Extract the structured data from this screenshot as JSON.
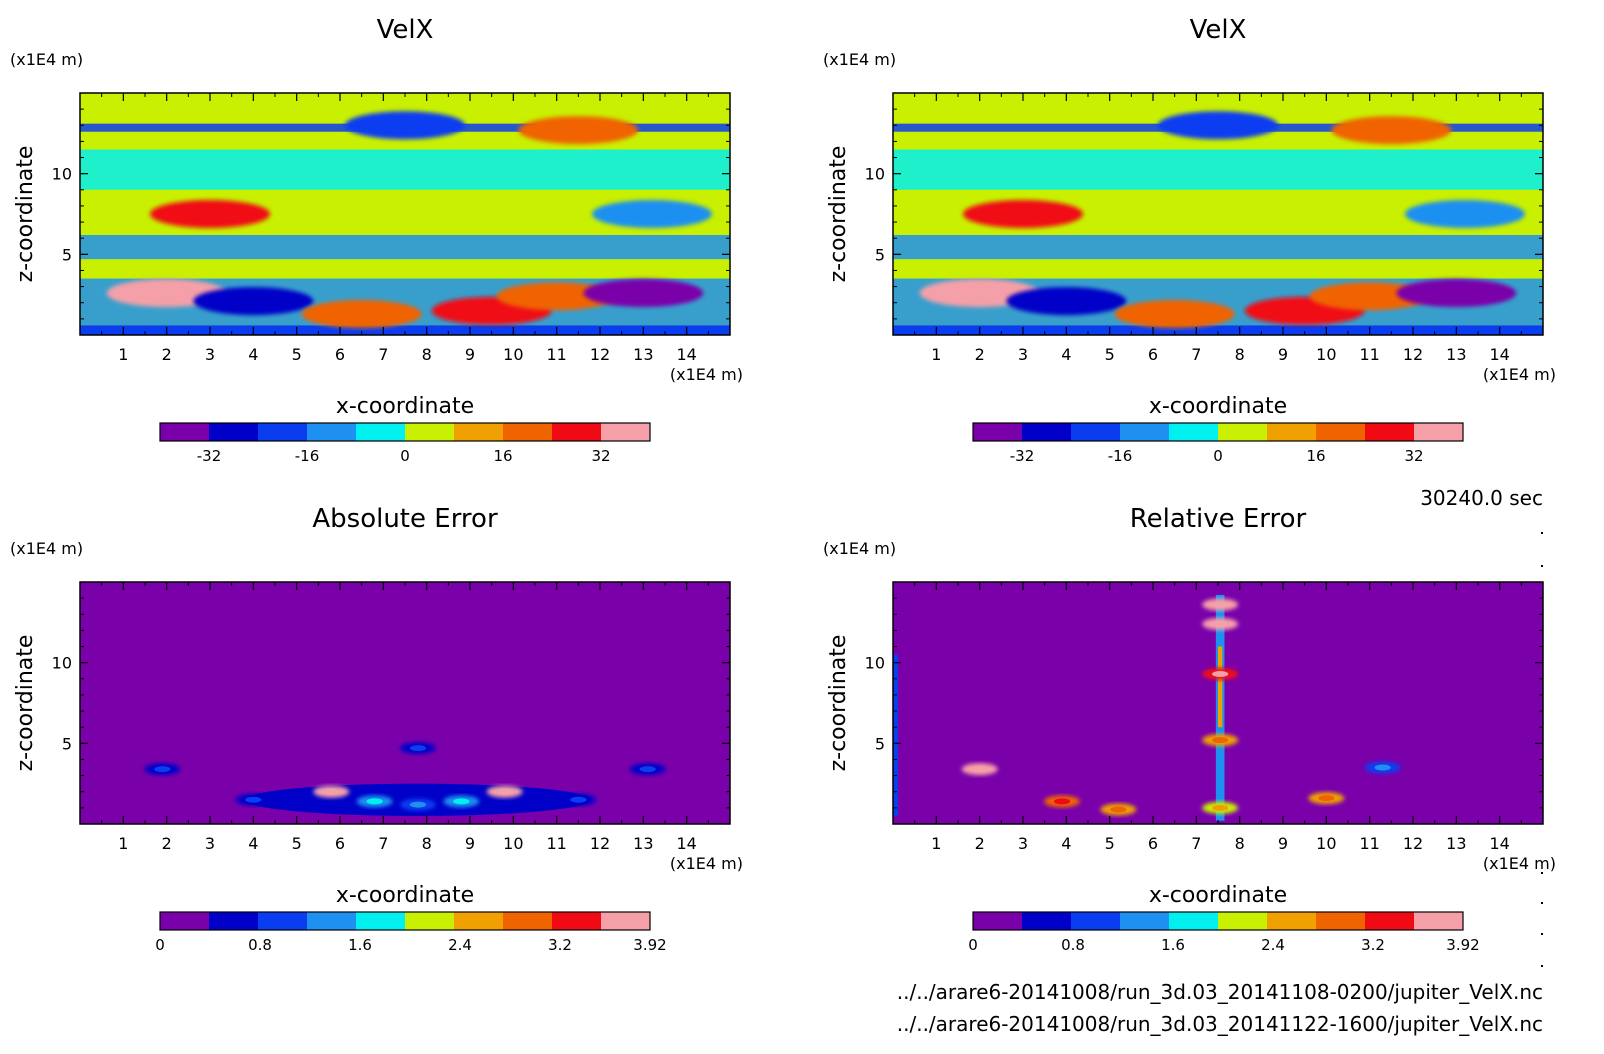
{
  "time_label": "30240.0 sec",
  "files": [
    "../../arare6-20141008/run_3d.03_20141108-0200/jupiter_VelX.nc",
    "../../arare6-20141008/run_3d.03_20141122-1600/jupiter_VelX.nc"
  ],
  "chart_data": [
    {
      "type": "heatmap",
      "title": "VelX",
      "xlabel": "x-coordinate",
      "ylabel": "z-coordinate",
      "x_unit": "(x1E4 m)",
      "y_unit": "(x1E4 m)",
      "xlim": [
        0,
        15
      ],
      "ylim": [
        0,
        15
      ],
      "x_ticks": [
        1,
        2,
        3,
        4,
        5,
        6,
        7,
        8,
        9,
        10,
        11,
        12,
        13,
        14
      ],
      "y_ticks": [
        5,
        10
      ],
      "colorbar": {
        "levels": [
          -40,
          -32,
          -24,
          -16,
          -8,
          0,
          8,
          16,
          24,
          32,
          40
        ],
        "tick_values": [
          -32,
          -16,
          0,
          16,
          32
        ],
        "tick_labels": [
          "-32",
          "-16",
          "0",
          "16",
          "32"
        ],
        "colors": [
          "#7a00aa",
          "#0000c8",
          "#0a3cf0",
          "#1e90f0",
          "#00f0f0",
          "#c8f000",
          "#f0a000",
          "#f06400",
          "#f00a14",
          "#f5a0a8"
        ]
      },
      "features": [
        {
          "x": 2,
          "z": 2.6,
          "value": 32
        },
        {
          "x": 4,
          "z": 2.1,
          "value": -28
        },
        {
          "x": 6.5,
          "z": 1.3,
          "value": 20
        },
        {
          "x": 9.5,
          "z": 1.5,
          "value": 24
        },
        {
          "x": 11,
          "z": 2.4,
          "value": 20
        },
        {
          "x": 13,
          "z": 2.6,
          "value": -36
        },
        {
          "x": 3,
          "z": 7.5,
          "value": 24
        },
        {
          "x": 13.2,
          "z": 7.5,
          "value": -16
        },
        {
          "x": 7.5,
          "z": 13,
          "value": -20
        },
        {
          "x": 11.5,
          "z": 12.7,
          "value": 20
        }
      ]
    },
    {
      "type": "heatmap",
      "title": "VelX",
      "xlabel": "x-coordinate",
      "ylabel": "z-coordinate",
      "x_unit": "(x1E4 m)",
      "y_unit": "(x1E4 m)",
      "xlim": [
        0,
        15
      ],
      "ylim": [
        0,
        15
      ],
      "x_ticks": [
        1,
        2,
        3,
        4,
        5,
        6,
        7,
        8,
        9,
        10,
        11,
        12,
        13,
        14
      ],
      "y_ticks": [
        5,
        10
      ],
      "colorbar": {
        "levels": [
          -40,
          -32,
          -24,
          -16,
          -8,
          0,
          8,
          16,
          24,
          32,
          40
        ],
        "tick_values": [
          -32,
          -16,
          0,
          16,
          32
        ],
        "tick_labels": [
          "-32",
          "-16",
          "0",
          "16",
          "32"
        ],
        "colors": [
          "#7a00aa",
          "#0000c8",
          "#0a3cf0",
          "#1e90f0",
          "#00f0f0",
          "#c8f000",
          "#f0a000",
          "#f06400",
          "#f00a14",
          "#f5a0a8"
        ]
      },
      "features": [
        {
          "x": 2,
          "z": 2.6,
          "value": 32
        },
        {
          "x": 4,
          "z": 2.1,
          "value": -28
        },
        {
          "x": 6.5,
          "z": 1.3,
          "value": 20
        },
        {
          "x": 9.5,
          "z": 1.5,
          "value": 24
        },
        {
          "x": 11,
          "z": 2.4,
          "value": 20
        },
        {
          "x": 13,
          "z": 2.6,
          "value": -36
        },
        {
          "x": 3,
          "z": 7.5,
          "value": 24
        },
        {
          "x": 13.2,
          "z": 7.5,
          "value": -16
        },
        {
          "x": 7.5,
          "z": 13,
          "value": -20
        },
        {
          "x": 11.5,
          "z": 12.7,
          "value": 20
        }
      ]
    },
    {
      "type": "heatmap",
      "title": "Absolute Error",
      "xlabel": "x-coordinate",
      "ylabel": "z-coordinate",
      "x_unit": "(x1E4 m)",
      "y_unit": "(x1E4 m)",
      "xlim": [
        0,
        15
      ],
      "ylim": [
        0,
        15
      ],
      "x_ticks": [
        1,
        2,
        3,
        4,
        5,
        6,
        7,
        8,
        9,
        10,
        11,
        12,
        13,
        14
      ],
      "y_ticks": [
        5,
        10
      ],
      "colorbar": {
        "levels": [
          0,
          0.392,
          0.784,
          1.176,
          1.568,
          1.96,
          2.352,
          2.744,
          3.136,
          3.528,
          3.92
        ],
        "tick_values": [
          0,
          0.8,
          1.6,
          2.4,
          3.2,
          3.92
        ],
        "tick_labels": [
          "0",
          "0.8",
          "1.6",
          "2.4",
          "3.2",
          "3.92"
        ],
        "colors": [
          "#7a00aa",
          "#0000c8",
          "#0a3cf0",
          "#1e90f0",
          "#00f0f0",
          "#c8f000",
          "#f0a000",
          "#f06400",
          "#f00a14",
          "#f5a0a8"
        ]
      },
      "features": [
        {
          "x": 5.8,
          "z": 2.0,
          "value": 3.9
        },
        {
          "x": 9.8,
          "z": 2.0,
          "value": 3.9
        },
        {
          "x": 6.8,
          "z": 1.4,
          "value": 1.2
        },
        {
          "x": 7.8,
          "z": 1.2,
          "value": 1.0
        },
        {
          "x": 8.8,
          "z": 1.4,
          "value": 1.2
        },
        {
          "x": 7.8,
          "z": 4.7,
          "value": 0.5
        },
        {
          "x": 1.9,
          "z": 3.4,
          "value": 0.5
        },
        {
          "x": 13.1,
          "z": 3.4,
          "value": 0.5
        },
        {
          "x": 4,
          "z": 1.5,
          "value": 0.6
        },
        {
          "x": 11.5,
          "z": 1.5,
          "value": 0.6
        }
      ]
    },
    {
      "type": "heatmap",
      "title": "Relative Error",
      "xlabel": "x-coordinate",
      "ylabel": "z-coordinate",
      "x_unit": "(x1E4 m)",
      "y_unit": "(x1E4 m)",
      "xlim": [
        0,
        15
      ],
      "ylim": [
        0,
        15
      ],
      "x_ticks": [
        1,
        2,
        3,
        4,
        5,
        6,
        7,
        8,
        9,
        10,
        11,
        12,
        13,
        14
      ],
      "y_ticks": [
        5,
        10
      ],
      "colorbar": {
        "levels": [
          0,
          0.392,
          0.784,
          1.176,
          1.568,
          1.96,
          2.352,
          2.744,
          3.136,
          3.528,
          3.92
        ],
        "tick_values": [
          0,
          0.8,
          1.6,
          2.4,
          3.2,
          3.92
        ],
        "tick_labels": [
          "0",
          "0.8",
          "1.6",
          "2.4",
          "3.2",
          "3.92"
        ],
        "colors": [
          "#7a00aa",
          "#0000c8",
          "#0a3cf0",
          "#1e90f0",
          "#00f0f0",
          "#c8f000",
          "#f0a000",
          "#f06400",
          "#f00a14",
          "#f5a0a8"
        ]
      },
      "features": [
        {
          "x": 7.55,
          "z": 9.3,
          "value": 3.3
        },
        {
          "x": 7.55,
          "z": 5.2,
          "value": 2.6
        },
        {
          "x": 7.55,
          "z": 1.0,
          "value": 2.2
        },
        {
          "x": 7.55,
          "z": 12.4,
          "value": 3.92
        },
        {
          "x": 7.55,
          "z": 13.6,
          "value": 3.92
        },
        {
          "x": 10,
          "z": 1.6,
          "value": 2.4
        },
        {
          "x": 2.0,
          "z": 3.4,
          "value": 3.92
        },
        {
          "x": 3.9,
          "z": 1.4,
          "value": 2.8
        },
        {
          "x": 5.2,
          "z": 0.9,
          "value": 2.4
        },
        {
          "x": 11.3,
          "z": 3.5,
          "value": 1.0
        }
      ]
    }
  ]
}
